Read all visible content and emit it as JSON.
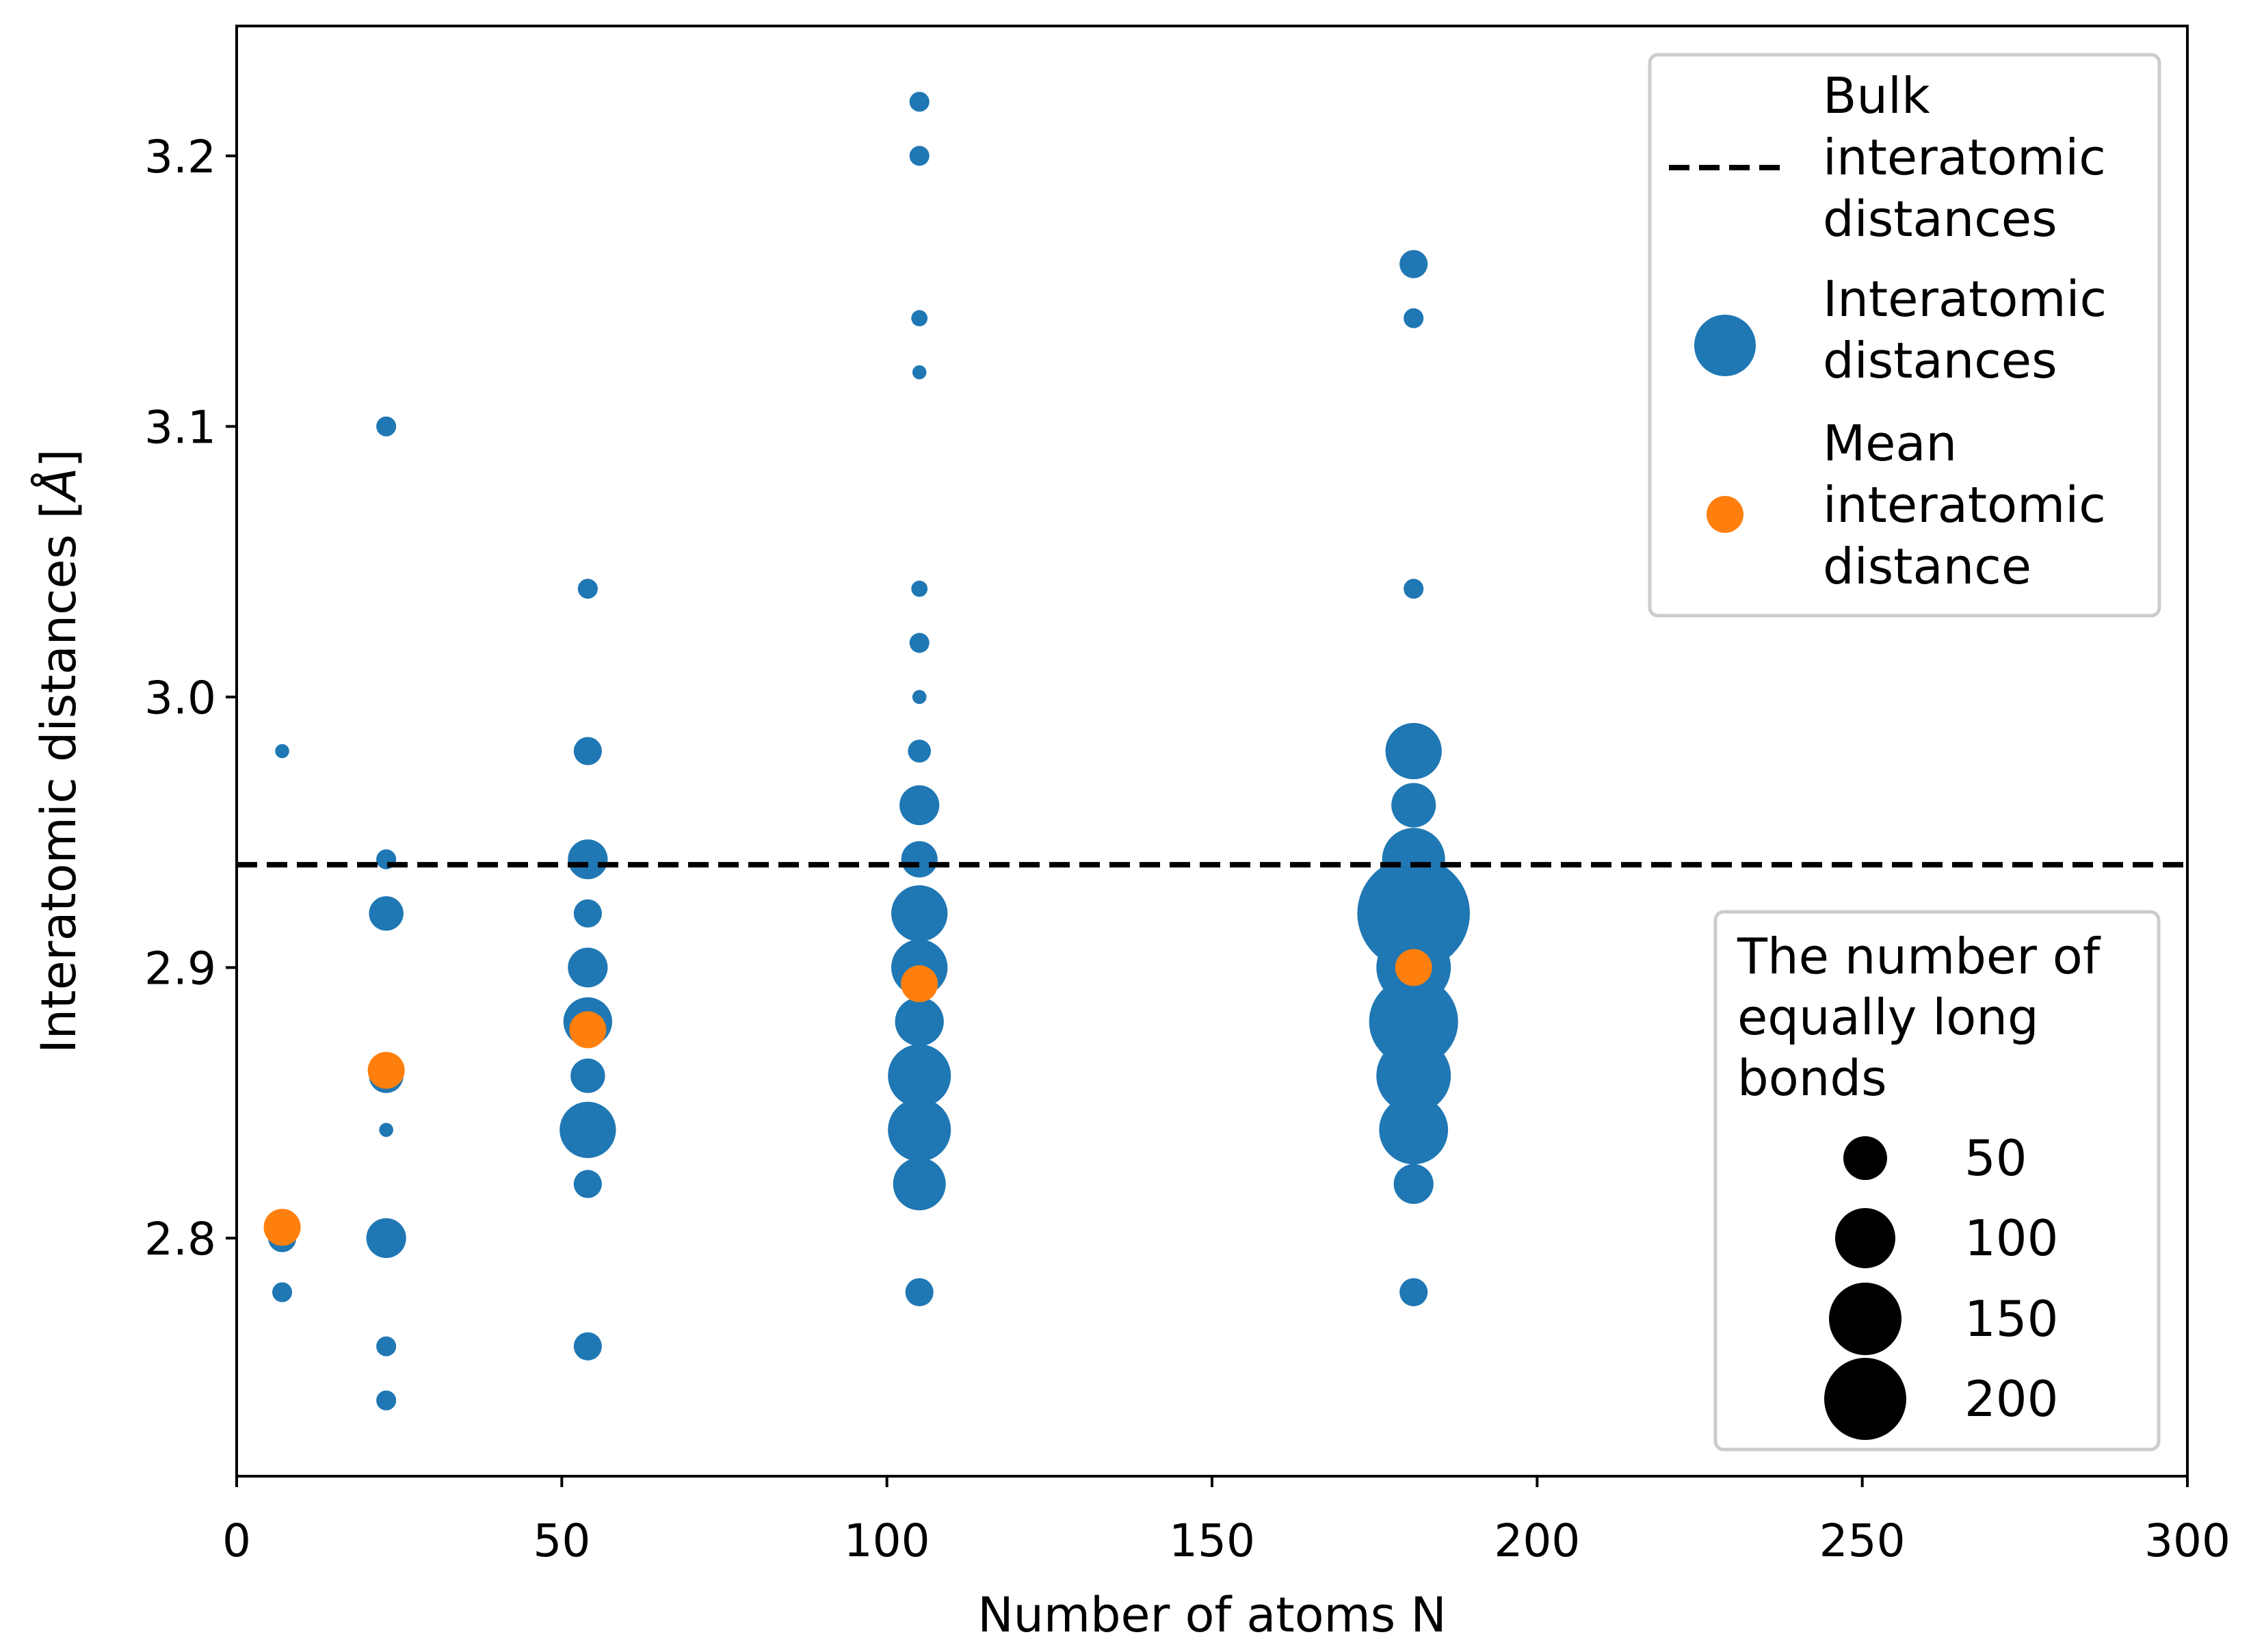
{
  "chart_data": {
    "type": "scatter",
    "title": "",
    "xlabel": "Number of atoms N",
    "ylabel_main": "Interatomic distances [",
    "ylabel_unit": "Å",
    "ylabel_close": "]",
    "xlim": [
      0,
      300
    ],
    "ylim": [
      2.712,
      3.248
    ],
    "xticks": [
      0,
      50,
      100,
      150,
      200,
      250,
      300
    ],
    "xtick_labels": [
      "0",
      "50",
      "100",
      "150",
      "200",
      "250",
      "300"
    ],
    "yticks": [
      2.8,
      2.9,
      3.0,
      3.1,
      3.2
    ],
    "ytick_labels": [
      "2.8",
      "2.9",
      "3.0",
      "3.1",
      "3.2"
    ],
    "grid": false,
    "bulk_distance": 2.938,
    "colors": {
      "interatomic": "#1f77b4",
      "mean": "#ff7f0e",
      "bulk": "#000000"
    },
    "series": [
      {
        "name": "Interatomic distances",
        "note": "each point: [N, distance in Å, number of equally long bonds]",
        "points": [
          [
            7,
            2.98,
            6
          ],
          [
            7,
            2.8,
            24
          ],
          [
            7,
            2.78,
            12
          ],
          [
            23,
            3.1,
            12
          ],
          [
            23,
            2.94,
            12
          ],
          [
            23,
            2.92,
            36
          ],
          [
            23,
            2.86,
            36
          ],
          [
            23,
            2.84,
            6
          ],
          [
            23,
            2.8,
            48
          ],
          [
            23,
            2.76,
            12
          ],
          [
            23,
            2.74,
            12
          ],
          [
            54,
            3.04,
            12
          ],
          [
            54,
            2.98,
            24
          ],
          [
            54,
            2.94,
            48
          ],
          [
            54,
            2.92,
            24
          ],
          [
            54,
            2.9,
            48
          ],
          [
            54,
            2.88,
            72
          ],
          [
            54,
            2.86,
            36
          ],
          [
            54,
            2.84,
            96
          ],
          [
            54,
            2.82,
            24
          ],
          [
            54,
            2.76,
            24
          ],
          [
            105,
            3.22,
            12
          ],
          [
            105,
            3.2,
            12
          ],
          [
            105,
            3.14,
            8
          ],
          [
            105,
            3.12,
            6
          ],
          [
            105,
            3.04,
            8
          ],
          [
            105,
            3.02,
            12
          ],
          [
            105,
            3.0,
            6
          ],
          [
            105,
            2.98,
            16
          ],
          [
            105,
            2.96,
            48
          ],
          [
            105,
            2.94,
            40
          ],
          [
            105,
            2.92,
            96
          ],
          [
            105,
            2.9,
            96
          ],
          [
            105,
            2.88,
            72
          ],
          [
            105,
            2.86,
            120
          ],
          [
            105,
            2.84,
            120
          ],
          [
            105,
            2.82,
            84
          ],
          [
            105,
            2.78,
            24
          ],
          [
            181,
            3.16,
            24
          ],
          [
            181,
            3.14,
            12
          ],
          [
            181,
            3.04,
            12
          ],
          [
            181,
            2.98,
            96
          ],
          [
            181,
            2.96,
            60
          ],
          [
            181,
            2.94,
            120
          ],
          [
            181,
            2.92,
            384
          ],
          [
            181,
            2.9,
            168
          ],
          [
            181,
            2.88,
            240
          ],
          [
            181,
            2.86,
            168
          ],
          [
            181,
            2.84,
            144
          ],
          [
            181,
            2.82,
            48
          ],
          [
            181,
            2.78,
            24
          ]
        ]
      },
      {
        "name": "Mean interatomic distance",
        "points": [
          [
            7,
            2.804
          ],
          [
            23,
            2.862
          ],
          [
            54,
            2.877
          ],
          [
            105,
            2.894
          ],
          [
            181,
            2.9
          ]
        ]
      }
    ],
    "legend_main": {
      "placement": "top-right",
      "entries": [
        {
          "label_lines": [
            "Bulk",
            "interatomic",
            "distances"
          ],
          "marker": "dashed-line"
        },
        {
          "label_lines": [
            "Interatomic",
            "distances"
          ],
          "marker": "blue-circle"
        },
        {
          "label_lines": [
            "Mean",
            "interatomic",
            "distance"
          ],
          "marker": "orange-circle"
        }
      ]
    },
    "legend_size": {
      "placement": "bottom-right",
      "title_lines": [
        "The number of",
        "equally long",
        "bonds"
      ],
      "entries": [
        {
          "label": "50",
          "value": 50
        },
        {
          "label": "100",
          "value": 100
        },
        {
          "label": "150",
          "value": 150
        },
        {
          "label": "200",
          "value": 200
        }
      ]
    }
  }
}
